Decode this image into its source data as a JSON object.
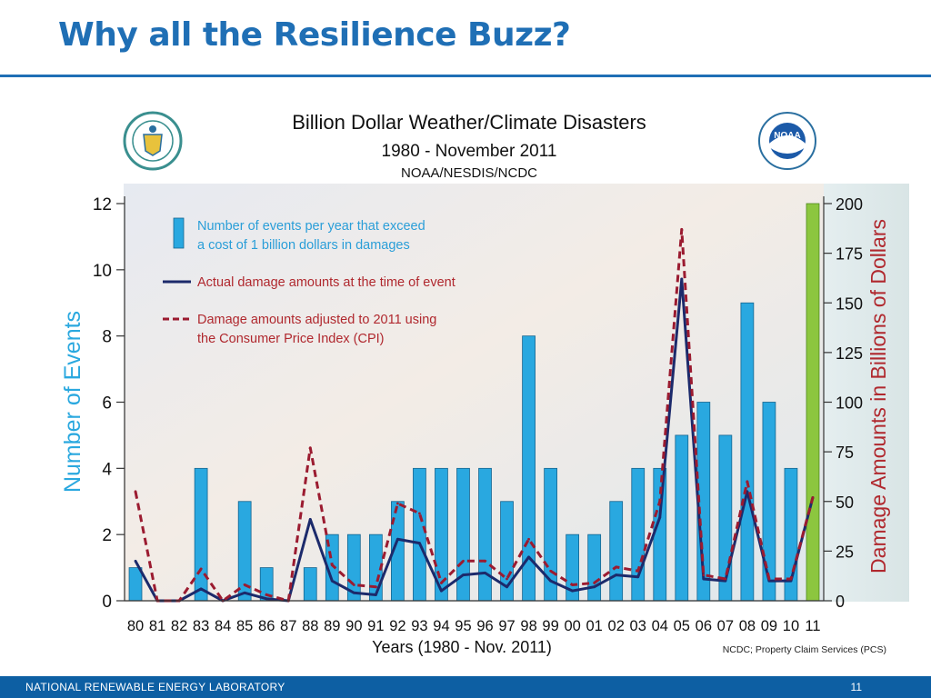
{
  "slide": {
    "title": "Why all the Resilience Buzz?",
    "footer_text": "NATIONAL RENEWABLE ENERGY LABORATORY",
    "page_number": "11"
  },
  "colors": {
    "accent": "#1f6fb5",
    "bar": "#29a8e0",
    "bar_current": "#8cc63f",
    "actual_line": "#1c2a6b",
    "adjusted_line": "#9b1b30",
    "right_axis_label": "#b0282e"
  },
  "logos": {
    "left": "seal-icon",
    "right": "noaa-icon",
    "right_text": "NOAA"
  },
  "chart_data": {
    "type": "bar",
    "title": "Billion Dollar Weather/Climate Disasters",
    "subtitle": "1980 - November 2011",
    "subtitle2": "NOAA/NESDIS/NCDC",
    "xlabel": "Years (1980 - Nov. 2011)",
    "ylabel": "Number of Events",
    "y2label": "Damage Amounts in Billions of Dollars",
    "source": "NCDC; Property Claim Services (PCS)",
    "ylim": [
      0,
      12
    ],
    "y2lim": [
      0,
      200
    ],
    "yticks": [
      "0",
      "2",
      "4",
      "6",
      "8",
      "10",
      "12"
    ],
    "y2ticks": [
      "0",
      "25",
      "50",
      "75",
      "100",
      "125",
      "150",
      "175",
      "200"
    ],
    "categories": [
      "80",
      "81",
      "82",
      "83",
      "84",
      "85",
      "86",
      "87",
      "88",
      "89",
      "90",
      "91",
      "92",
      "93",
      "94",
      "95",
      "96",
      "97",
      "98",
      "99",
      "00",
      "01",
      "02",
      "03",
      "04",
      "05",
      "06",
      "07",
      "08",
      "09",
      "10",
      "11"
    ],
    "legend": {
      "bars": "Number of events per year that exceed",
      "bars2": "a cost of 1 billion dollars in damages",
      "actual": "Actual damage amounts at the time of event",
      "adjusted": "Damage amounts adjusted to 2011 using",
      "adjusted2": "the Consumer Price Index (CPI)"
    },
    "series": [
      {
        "name": "Number of events per year that exceed a cost of 1 billion dollars in damages",
        "axis": "left",
        "values": [
          1,
          0,
          0,
          4,
          0,
          3,
          1,
          0,
          1,
          2,
          2,
          2,
          3,
          4,
          4,
          4,
          4,
          3,
          8,
          4,
          2,
          2,
          3,
          4,
          4,
          5,
          6,
          5,
          9,
          6,
          4,
          12
        ]
      },
      {
        "name": "Actual damage amounts at the time of event",
        "axis": "right",
        "values": [
          20,
          0,
          0,
          6,
          0,
          4,
          1,
          0,
          41,
          10,
          4,
          3,
          31,
          29,
          5,
          13,
          14,
          7,
          22,
          10,
          5,
          7,
          13,
          12,
          42,
          162,
          11,
          10,
          55,
          10,
          10,
          52
        ]
      },
      {
        "name": "Damage amounts adjusted to 2011 using the Consumer Price Index (CPI)",
        "axis": "right",
        "values": [
          55,
          0,
          0,
          16,
          0,
          8,
          3,
          0,
          77,
          18,
          8,
          7,
          49,
          44,
          9,
          20,
          20,
          11,
          31,
          15,
          8,
          9,
          17,
          15,
          50,
          187,
          13,
          11,
          60,
          11,
          11,
          52
        ]
      }
    ]
  }
}
